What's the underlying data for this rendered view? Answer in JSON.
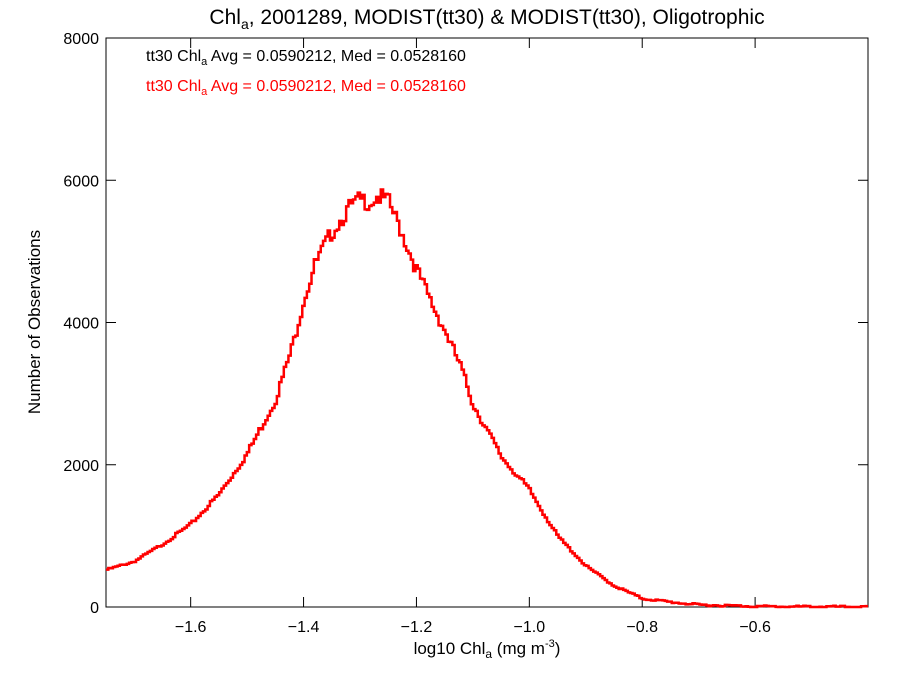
{
  "title": {
    "main": "Chl",
    "sub": "a",
    "rest": ", 2001289, MODIST(tt30) & MODIST(tt30), Oligotrophic"
  },
  "stats": [
    {
      "pre": "tt30 Chl",
      "sub": "a",
      "post": " Avg = 0.0590212, Med = 0.0528160",
      "color": "#000000"
    },
    {
      "pre": "tt30 Chl",
      "sub": "a",
      "post": " Avg = 0.0590212, Med = 0.0528160",
      "color": "#ff0000"
    }
  ],
  "axes": {
    "ylabel": "Number of Observations",
    "xlabel": {
      "pre": "log10 Chl",
      "sub": "a",
      "mid": " (mg m",
      "sup": "-3",
      "post": ")"
    }
  },
  "chart_data": {
    "type": "line",
    "step": true,
    "xlim": [
      -1.75,
      -0.4
    ],
    "ylim": [
      0,
      8000
    ],
    "x_ticks": [
      -1.6,
      -1.4,
      -1.2,
      -1.0,
      -0.8,
      -0.6
    ],
    "x_tick_labels": [
      "−1.6",
      "−1.4",
      "−1.2",
      "−1.0",
      "−0.8",
      "−0.6"
    ],
    "y_ticks": [
      0,
      2000,
      4000,
      6000,
      8000
    ],
    "y_tick_labels": [
      "0",
      "2000",
      "4000",
      "6000",
      "8000"
    ],
    "series": [
      {
        "color": "#ff0000",
        "x": [
          -1.75,
          -1.7,
          -1.65,
          -1.6,
          -1.55,
          -1.5,
          -1.45,
          -1.42,
          -1.4,
          -1.38,
          -1.35,
          -1.32,
          -1.3,
          -1.28,
          -1.27,
          -1.25,
          -1.23,
          -1.2,
          -1.17,
          -1.15,
          -1.12,
          -1.1,
          -1.05,
          -1.0,
          -0.95,
          -0.9,
          -0.85,
          -0.8,
          -0.75,
          -0.7,
          -0.65,
          -0.6,
          -0.55,
          -0.5,
          -0.45,
          -0.4
        ],
        "values": [
          520,
          640,
          880,
          1160,
          1580,
          2150,
          2900,
          3650,
          4300,
          4800,
          5270,
          5600,
          5720,
          5700,
          5780,
          5700,
          5350,
          4750,
          4220,
          3900,
          3350,
          2860,
          2120,
          1650,
          1000,
          580,
          300,
          120,
          70,
          30,
          20,
          10,
          5,
          5,
          3,
          0
        ]
      }
    ]
  }
}
